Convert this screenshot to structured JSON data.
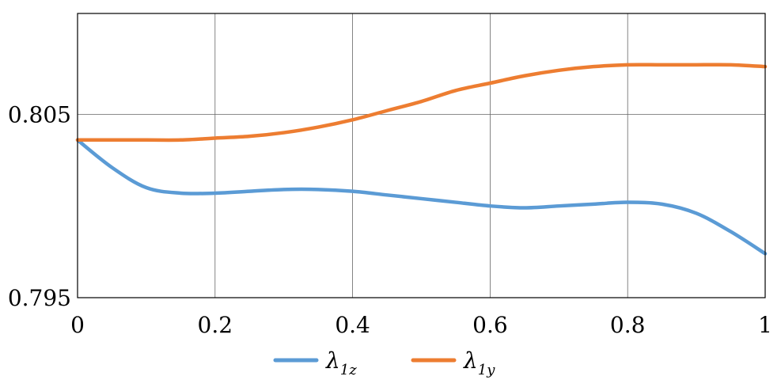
{
  "chart_data": {
    "type": "line",
    "title": "",
    "xlabel": "",
    "ylabel": "",
    "xlim": [
      0,
      1
    ],
    "ylim": [
      0.795,
      0.8105
    ],
    "xticks": [
      "0",
      "0.2",
      "0.4",
      "0.6",
      "0.8",
      "1"
    ],
    "yticks": [
      "0.795",
      "0.805"
    ],
    "grid": true,
    "legend_position": "bottom",
    "series": [
      {
        "name": "λ1z",
        "legend_main": "λ",
        "legend_sub": "1z",
        "color": "#5B9BD5",
        "x": [
          0,
          0.05,
          0.1,
          0.15,
          0.2,
          0.25,
          0.3,
          0.35,
          0.4,
          0.45,
          0.5,
          0.55,
          0.6,
          0.65,
          0.7,
          0.75,
          0.8,
          0.85,
          0.9,
          0.95,
          1.0
        ],
        "y": [
          0.8036,
          0.8021,
          0.801,
          0.8007,
          0.8007,
          0.8008,
          0.8009,
          0.8009,
          0.8008,
          0.8006,
          0.8004,
          0.8002,
          0.8,
          0.7999,
          0.8,
          0.8001,
          0.8002,
          0.8001,
          0.7996,
          0.7986,
          0.7974
        ]
      },
      {
        "name": "λ1y",
        "legend_main": "λ",
        "legend_sub": "1y",
        "color": "#ED7D31",
        "x": [
          0,
          0.05,
          0.1,
          0.15,
          0.2,
          0.25,
          0.3,
          0.35,
          0.4,
          0.45,
          0.5,
          0.55,
          0.6,
          0.65,
          0.7,
          0.75,
          0.8,
          0.85,
          0.9,
          0.95,
          1.0
        ],
        "y": [
          0.8036,
          0.8036,
          0.8036,
          0.8036,
          0.8037,
          0.8038,
          0.804,
          0.8043,
          0.8047,
          0.8052,
          0.8057,
          0.8063,
          0.8067,
          0.8071,
          0.8074,
          0.8076,
          0.8077,
          0.8077,
          0.8077,
          0.8077,
          0.8076
        ]
      }
    ]
  }
}
